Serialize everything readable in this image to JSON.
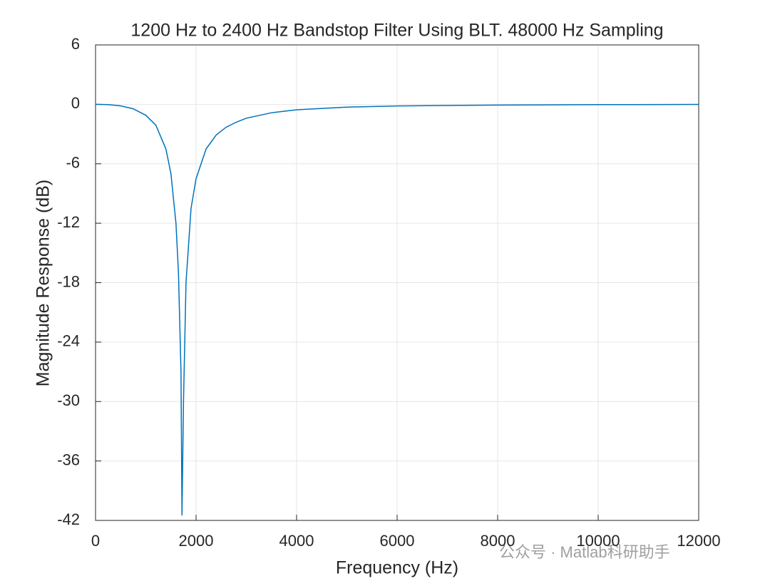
{
  "chart_data": {
    "type": "line",
    "title": "1200 Hz to 2400 Hz Bandstop Filter Using BLT. 48000 Hz Sampling",
    "x_label": "Frequency (Hz)",
    "y_label": "Magnitude Response (dB)",
    "x": [
      0,
      250,
      500,
      750,
      1000,
      1200,
      1400,
      1500,
      1600,
      1650,
      1700,
      1720,
      1750,
      1800,
      1900,
      2000,
      2200,
      2400,
      2600,
      2800,
      3000,
      3500,
      4000,
      5000,
      6000,
      8000,
      10000,
      12000
    ],
    "series": [
      {
        "color": "#0072bd",
        "values": [
          0,
          -0.03,
          -0.15,
          -0.45,
          -1.1,
          -2.1,
          -4.5,
          -7,
          -12,
          -17,
          -27,
          -41.5,
          -30,
          -18,
          -10.5,
          -7.5,
          -4.5,
          -3.1,
          -2.3,
          -1.8,
          -1.4,
          -0.85,
          -0.55,
          -0.28,
          -0.16,
          -0.07,
          -0.03,
          -0.01
        ]
      }
    ],
    "xlim": [
      0,
      12000
    ],
    "xticks": [
      0,
      2000,
      4000,
      6000,
      8000,
      10000,
      12000
    ],
    "ylim": [
      -42,
      6
    ],
    "yticks": [
      -42,
      -36,
      -30,
      -24,
      -18,
      -12,
      -6,
      0,
      6
    ],
    "grid": true,
    "watermark": "公众号 · Matlab科研助手"
  }
}
